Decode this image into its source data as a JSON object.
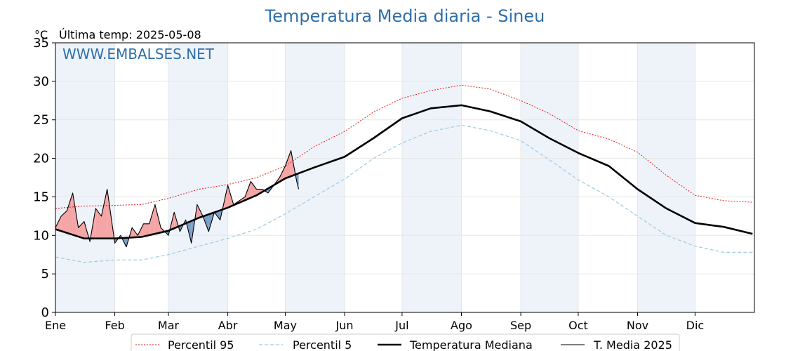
{
  "chart_data": {
    "type": "line",
    "title": "Temperatura Media diaria - Sineu",
    "unit": "°C",
    "last_reading": "Última temp: 2025-05-08",
    "watermark": "WWW.EMBALSES.NET",
    "ylim": [
      0,
      35
    ],
    "yticks": [
      0,
      5,
      10,
      15,
      20,
      25,
      30,
      35
    ],
    "months": [
      "Ene",
      "Feb",
      "Mar",
      "Abr",
      "May",
      "Jun",
      "Jul",
      "Ago",
      "Sep",
      "Oct",
      "Nov",
      "Dic"
    ],
    "month_start_days": [
      0,
      31,
      59,
      90,
      120,
      151,
      181,
      212,
      243,
      273,
      304,
      334
    ],
    "days_in_year": 365,
    "shaded_month_indices": [
      0,
      2,
      4,
      6,
      8,
      10
    ],
    "grid": true,
    "legend_position": "bottom-center",
    "series": [
      {
        "name": "Percentil 95",
        "style": "dotted",
        "color": "#e31a1c",
        "x": [
          0,
          15,
          31,
          45,
          59,
          75,
          90,
          105,
          120,
          135,
          151,
          166,
          181,
          196,
          212,
          227,
          243,
          258,
          273,
          289,
          304,
          319,
          334,
          349,
          364
        ],
        "values": [
          13.5,
          13.8,
          13.9,
          14.0,
          14.8,
          16.0,
          16.6,
          17.5,
          19.0,
          21.5,
          23.5,
          26.0,
          27.8,
          28.8,
          29.5,
          29.0,
          27.5,
          25.8,
          23.6,
          22.5,
          20.8,
          17.8,
          15.2,
          14.5,
          14.3
        ]
      },
      {
        "name": "Percentil 5",
        "style": "dashed",
        "color": "#9ecae1",
        "x": [
          0,
          15,
          31,
          45,
          59,
          75,
          90,
          105,
          120,
          135,
          151,
          166,
          181,
          196,
          212,
          227,
          243,
          258,
          273,
          289,
          304,
          319,
          334,
          349,
          364
        ],
        "values": [
          7.2,
          6.5,
          6.8,
          6.8,
          7.5,
          8.6,
          9.6,
          10.8,
          12.8,
          15.0,
          17.3,
          20.0,
          22.0,
          23.5,
          24.3,
          23.6,
          22.3,
          19.8,
          17.2,
          15.0,
          12.5,
          10.0,
          8.6,
          7.8,
          7.8
        ]
      },
      {
        "name": "Temperatura Mediana",
        "style": "solid-thick",
        "color": "#000000",
        "x": [
          0,
          15,
          31,
          45,
          59,
          75,
          90,
          105,
          120,
          135,
          151,
          166,
          181,
          196,
          212,
          227,
          243,
          258,
          273,
          289,
          304,
          319,
          334,
          349,
          364
        ],
        "values": [
          10.8,
          9.6,
          9.6,
          9.8,
          10.6,
          12.3,
          13.6,
          15.2,
          17.4,
          18.8,
          20.2,
          22.6,
          25.2,
          26.5,
          26.9,
          26.1,
          24.8,
          22.6,
          20.7,
          19.0,
          16.0,
          13.5,
          11.6,
          11.1,
          10.2
        ]
      },
      {
        "name": "T. Media 2025",
        "style": "solid-thin",
        "color": "#000000",
        "x": [
          0,
          3,
          6,
          9,
          12,
          15,
          18,
          21,
          24,
          27,
          31,
          34,
          37,
          40,
          43,
          46,
          49,
          52,
          55,
          59,
          62,
          65,
          68,
          71,
          74,
          77,
          80,
          83,
          86,
          90,
          93,
          96,
          99,
          102,
          105,
          108,
          111,
          114,
          117,
          120,
          123,
          126,
          127
        ],
        "values": [
          11.0,
          12.5,
          13.2,
          15.5,
          11.0,
          11.8,
          9.2,
          13.5,
          12.5,
          16.0,
          9.0,
          10.0,
          8.5,
          11.0,
          10.0,
          11.5,
          11.5,
          14.0,
          11.0,
          10.0,
          13.0,
          10.5,
          12.0,
          9.0,
          14.0,
          12.5,
          10.5,
          13.0,
          12.0,
          16.5,
          14.0,
          14.5,
          15.0,
          17.0,
          16.0,
          16.0,
          15.5,
          16.5,
          17.5,
          19.0,
          21.0,
          17.0,
          16.0
        ]
      }
    ]
  },
  "colors": {
    "above_median_fill": "#f4a5a5",
    "below_median_fill": "#7a9fc7",
    "month_band": "#eef3fa",
    "title": "#2f6fa8"
  }
}
